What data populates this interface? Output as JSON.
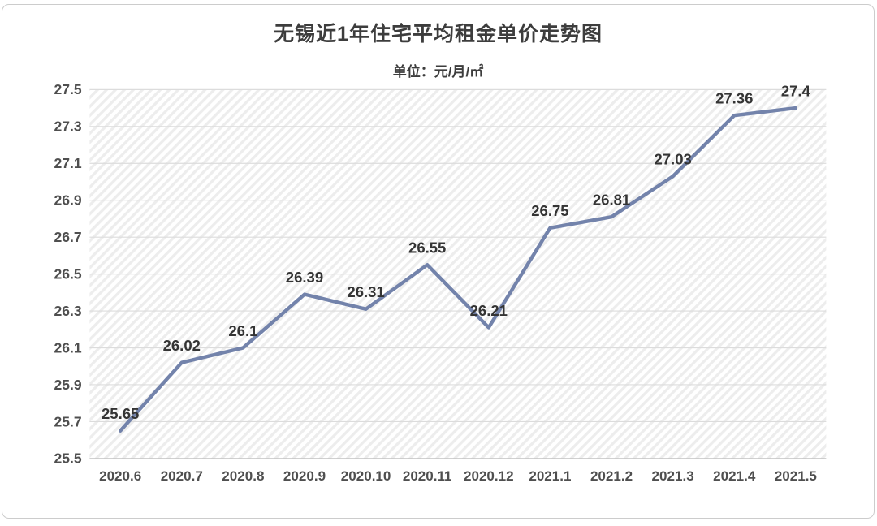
{
  "page": {
    "title": "无锡近1年住宅平均租金单价走势图",
    "subtitle": "单位：元/月/㎡"
  },
  "chart_data": {
    "type": "line",
    "title": "无锡近1年住宅平均租金单价走势图",
    "subtitle": "单位：元/月/㎡",
    "categories": [
      "2020.6",
      "2020.7",
      "2020.8",
      "2020.9",
      "2020.10",
      "2020.11",
      "2020.12",
      "2021.1",
      "2021.2",
      "2021.3",
      "2021.4",
      "2021.5"
    ],
    "values": [
      25.65,
      26.02,
      26.1,
      26.39,
      26.31,
      26.55,
      26.21,
      26.75,
      26.81,
      27.03,
      27.36,
      27.4
    ],
    "point_labels": [
      "25.65",
      "26.02",
      "26.1",
      "26.39",
      "26.31",
      "26.55",
      "26.21",
      "26.75",
      "26.81",
      "27.03",
      "27.36",
      "27.4"
    ],
    "xlabel": "",
    "ylabel": "",
    "ylim": [
      25.5,
      27.5
    ],
    "ytick_step": 0.2,
    "yticks": [
      "25.5",
      "25.7",
      "25.9",
      "26.1",
      "26.3",
      "26.5",
      "26.7",
      "26.9",
      "27.1",
      "27.3",
      "27.5"
    ],
    "grid": true,
    "legend_position": "none",
    "plot_background": "diagonal-hatch",
    "colors": {
      "line": "#7383ab",
      "grid_line": "#dcdcdc",
      "axis_line": "#c2c2c2",
      "hatch_stripe": "#ededed",
      "tick_text": "#4f4f4f",
      "data_label_text": "#343434",
      "title_text": "#3d3d3d",
      "card_border": "#cccccc"
    }
  }
}
